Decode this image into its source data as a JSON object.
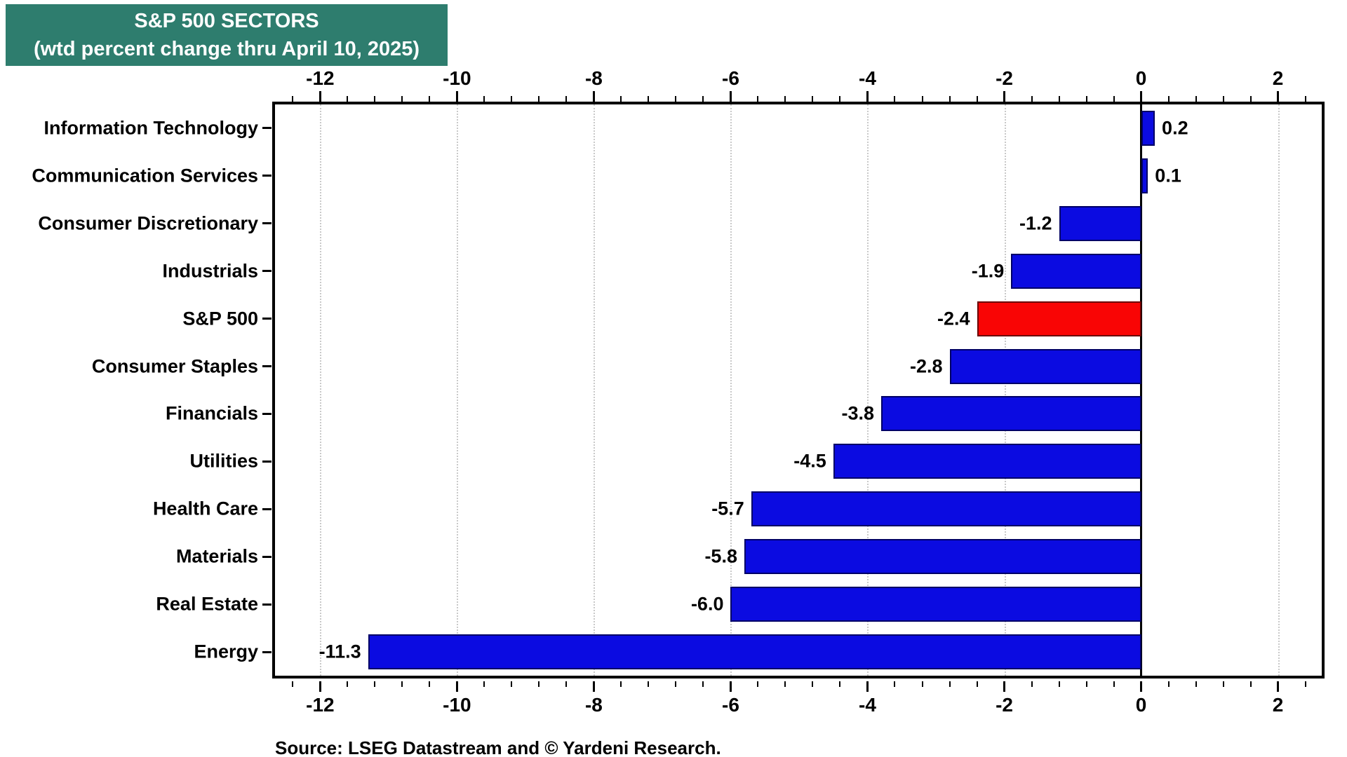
{
  "chart_data": {
    "type": "bar",
    "orientation": "horizontal",
    "title": "S&P 500 SECTORS",
    "subtitle": "(wtd percent change thru April 10, 2025)",
    "source": "Source: LSEG Datastream and © Yardeni Research.",
    "categories": [
      "Information Technology",
      "Communication Services",
      "Consumer Discretionary",
      "Industrials",
      "S&P 500",
      "Consumer Staples",
      "Financials",
      "Utilities",
      "Health Care",
      "Materials",
      "Real Estate",
      "Energy"
    ],
    "values": [
      0.2,
      0.1,
      -1.2,
      -1.9,
      -2.4,
      -2.8,
      -3.8,
      -4.5,
      -5.7,
      -5.8,
      -6.0,
      -11.3
    ],
    "value_labels": [
      "0.2",
      "0.1",
      "-1.2",
      "-1.9",
      "-2.4",
      "-2.8",
      "-3.8",
      "-4.5",
      "-5.7",
      "-5.8",
      "-6.0",
      "-11.3"
    ],
    "highlight_category": "S&P 500",
    "axis": {
      "min": -12.66,
      "max": 2.64,
      "major_ticks": [
        -12,
        -10,
        -8,
        -6,
        -4,
        -2,
        0,
        2
      ],
      "major_tick_labels": [
        "-12",
        "-10",
        "-8",
        "-6",
        "-4",
        "-2",
        "0",
        "2"
      ],
      "minor_step": 0.4,
      "tick_label_sides": "top and bottom",
      "grid": "dotted vertical lines at major ticks",
      "zero_line": true
    },
    "colors": {
      "bar_default": "#0b0be1",
      "bar_highlight": "#f90505",
      "title_bg": "#2e7d6e",
      "title_text": "#ffffff",
      "grid": "#c9c9c9",
      "axis": "#000000",
      "background": "#ffffff"
    }
  }
}
